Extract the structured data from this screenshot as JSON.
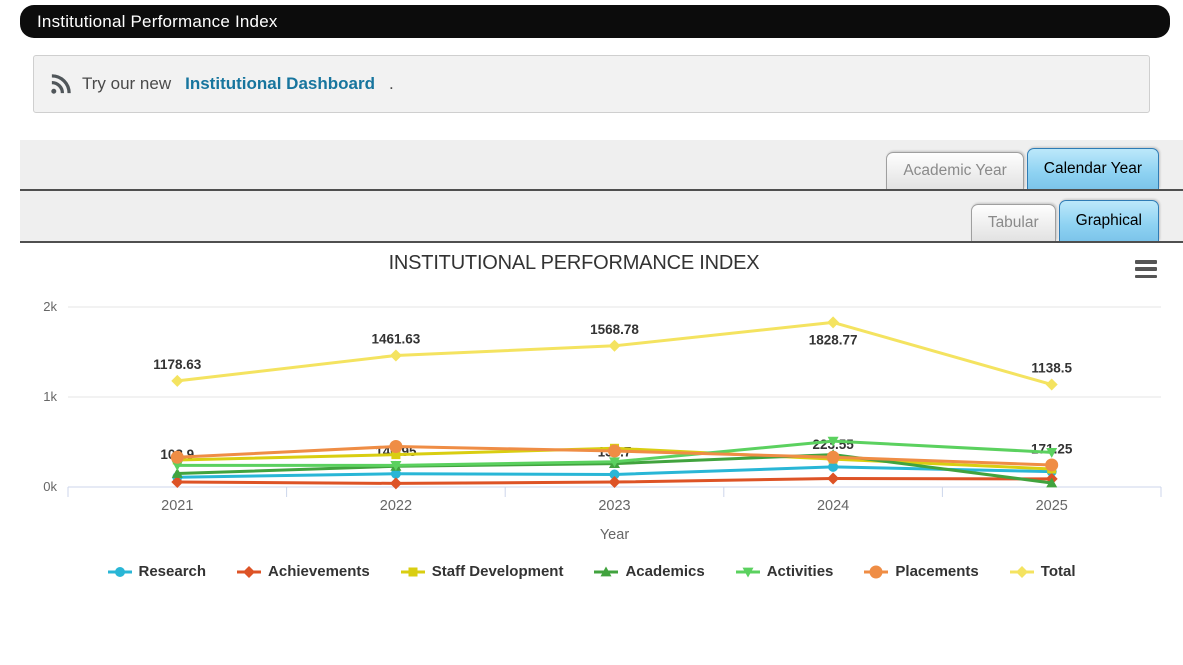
{
  "header": {
    "title": "Institutional Performance Index"
  },
  "notice": {
    "prefix": "Try our new",
    "link_label": "Institutional Dashboard",
    "suffix": "."
  },
  "toolbars": {
    "period_tabs": [
      {
        "label": "Academic Year",
        "active": false
      },
      {
        "label": "Calendar Year",
        "active": true
      }
    ],
    "view_tabs": [
      {
        "label": "Tabular",
        "active": false
      },
      {
        "label": "Graphical",
        "active": true
      }
    ]
  },
  "chart_data": {
    "type": "line",
    "title": "INSTITUTIONAL PERFORMANCE INDEX",
    "xlabel": "Year",
    "categories": [
      "2021",
      "2022",
      "2023",
      "2024",
      "2025"
    ],
    "ylim": [
      0,
      2000
    ],
    "yticks": [
      {
        "value": 0,
        "label": "0k"
      },
      {
        "value": 1000,
        "label": "1k"
      },
      {
        "value": 2000,
        "label": "2k"
      }
    ],
    "grid": true,
    "legend_position": "bottom",
    "colors": {
      "grid": "#e6e6e6",
      "axis": "#ccd6eb",
      "tick_label": "#666666",
      "data_label": "#333333"
    },
    "series": [
      {
        "name": "Research",
        "color": "#29b6d6",
        "marker": "circle",
        "radius": 5,
        "values": [
          108.9,
          146.95,
          138.7,
          223.55,
          171.25
        ],
        "show_labels": true,
        "label_dy": -18
      },
      {
        "name": "Achievements",
        "color": "#dd5326",
        "marker": "diamond",
        "radius": 5,
        "values": [
          55,
          40,
          55,
          95,
          90
        ],
        "show_labels": false
      },
      {
        "name": "Staff Development",
        "color": "#d9ce11",
        "marker": "square",
        "radius": 4.5,
        "values": [
          300,
          360,
          430,
          310,
          200
        ],
        "show_labels": false
      },
      {
        "name": "Academics",
        "color": "#41a33e",
        "marker": "triangle",
        "radius": 5.5,
        "values": [
          150,
          230,
          260,
          360,
          45
        ],
        "show_labels": false
      },
      {
        "name": "Activities",
        "color": "#5bd15f",
        "marker": "triangle-down",
        "radius": 5.5,
        "values": [
          240,
          240,
          280,
          510,
          385
        ],
        "show_labels": false
      },
      {
        "name": "Placements",
        "color": "#ef8d45",
        "marker": "circle",
        "radius": 6.5,
        "values": [
          330,
          450,
          400,
          330,
          245
        ],
        "show_labels": false
      },
      {
        "name": "Total",
        "color": "#f4e360",
        "marker": "diamond",
        "radius": 5,
        "values": [
          1178.63,
          1461.63,
          1568.78,
          1828.77,
          1138.5
        ],
        "show_labels": true,
        "label_dy": -12,
        "label_below_indices": [
          3
        ],
        "label_below_dy": 22
      }
    ]
  }
}
